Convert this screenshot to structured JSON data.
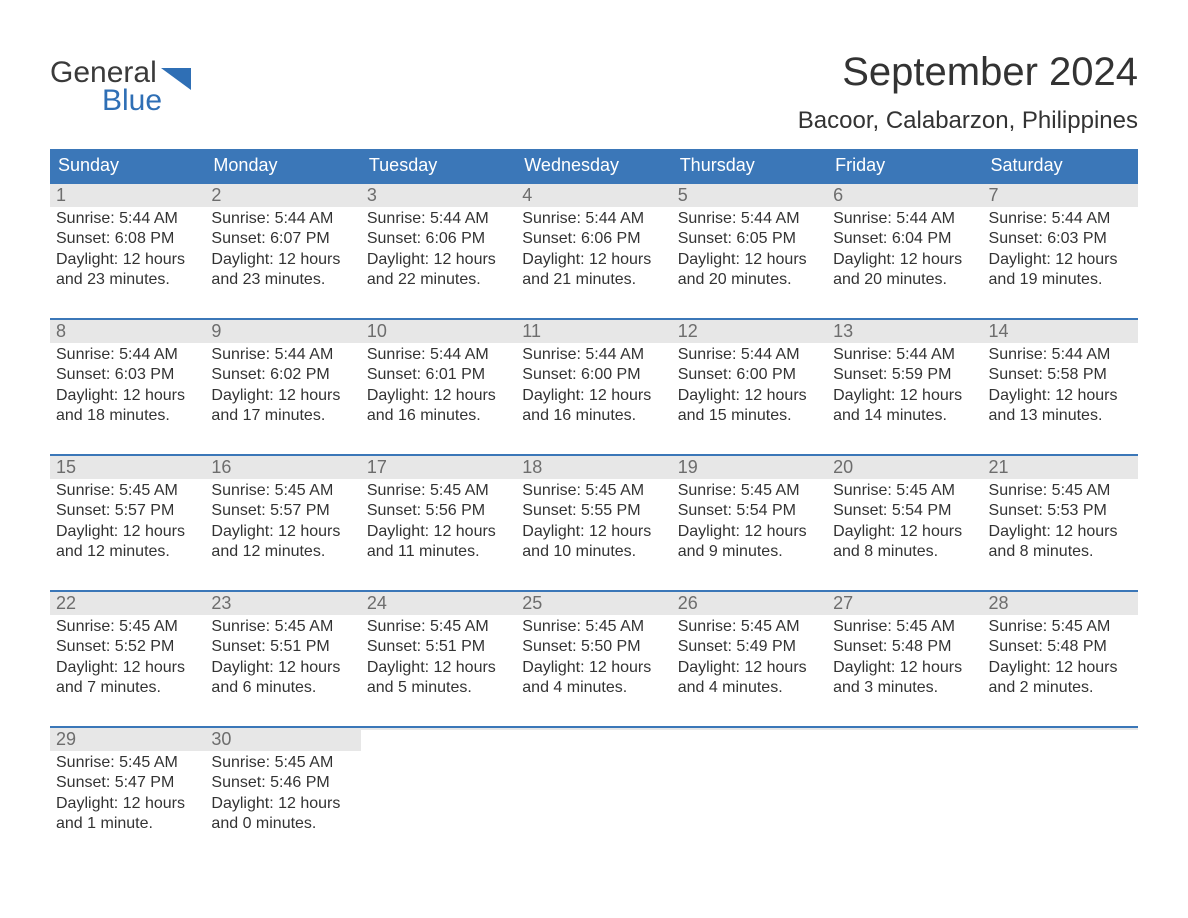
{
  "logo": {
    "text_general": "General",
    "text_blue": "Blue"
  },
  "header": {
    "month_title": "September 2024",
    "location": "Bacoor, Calabarzon, Philippines"
  },
  "colors": {
    "header_bg": "#3b77b8",
    "header_text": "#ffffff",
    "daynum_bg": "#e7e7e7",
    "daynum_text": "#6d6d6d",
    "body_text": "#333333",
    "logo_blue": "#2f6fb5",
    "week_border": "#3b77b8"
  },
  "day_names": [
    "Sunday",
    "Monday",
    "Tuesday",
    "Wednesday",
    "Thursday",
    "Friday",
    "Saturday"
  ],
  "weeks": [
    [
      {
        "num": "1",
        "sunrise": "Sunrise: 5:44 AM",
        "sunset": "Sunset: 6:08 PM",
        "daylight": "Daylight: 12 hours and 23 minutes."
      },
      {
        "num": "2",
        "sunrise": "Sunrise: 5:44 AM",
        "sunset": "Sunset: 6:07 PM",
        "daylight": "Daylight: 12 hours and 23 minutes."
      },
      {
        "num": "3",
        "sunrise": "Sunrise: 5:44 AM",
        "sunset": "Sunset: 6:06 PM",
        "daylight": "Daylight: 12 hours and 22 minutes."
      },
      {
        "num": "4",
        "sunrise": "Sunrise: 5:44 AM",
        "sunset": "Sunset: 6:06 PM",
        "daylight": "Daylight: 12 hours and 21 minutes."
      },
      {
        "num": "5",
        "sunrise": "Sunrise: 5:44 AM",
        "sunset": "Sunset: 6:05 PM",
        "daylight": "Daylight: 12 hours and 20 minutes."
      },
      {
        "num": "6",
        "sunrise": "Sunrise: 5:44 AM",
        "sunset": "Sunset: 6:04 PM",
        "daylight": "Daylight: 12 hours and 20 minutes."
      },
      {
        "num": "7",
        "sunrise": "Sunrise: 5:44 AM",
        "sunset": "Sunset: 6:03 PM",
        "daylight": "Daylight: 12 hours and 19 minutes."
      }
    ],
    [
      {
        "num": "8",
        "sunrise": "Sunrise: 5:44 AM",
        "sunset": "Sunset: 6:03 PM",
        "daylight": "Daylight: 12 hours and 18 minutes."
      },
      {
        "num": "9",
        "sunrise": "Sunrise: 5:44 AM",
        "sunset": "Sunset: 6:02 PM",
        "daylight": "Daylight: 12 hours and 17 minutes."
      },
      {
        "num": "10",
        "sunrise": "Sunrise: 5:44 AM",
        "sunset": "Sunset: 6:01 PM",
        "daylight": "Daylight: 12 hours and 16 minutes."
      },
      {
        "num": "11",
        "sunrise": "Sunrise: 5:44 AM",
        "sunset": "Sunset: 6:00 PM",
        "daylight": "Daylight: 12 hours and 16 minutes."
      },
      {
        "num": "12",
        "sunrise": "Sunrise: 5:44 AM",
        "sunset": "Sunset: 6:00 PM",
        "daylight": "Daylight: 12 hours and 15 minutes."
      },
      {
        "num": "13",
        "sunrise": "Sunrise: 5:44 AM",
        "sunset": "Sunset: 5:59 PM",
        "daylight": "Daylight: 12 hours and 14 minutes."
      },
      {
        "num": "14",
        "sunrise": "Sunrise: 5:44 AM",
        "sunset": "Sunset: 5:58 PM",
        "daylight": "Daylight: 12 hours and 13 minutes."
      }
    ],
    [
      {
        "num": "15",
        "sunrise": "Sunrise: 5:45 AM",
        "sunset": "Sunset: 5:57 PM",
        "daylight": "Daylight: 12 hours and 12 minutes."
      },
      {
        "num": "16",
        "sunrise": "Sunrise: 5:45 AM",
        "sunset": "Sunset: 5:57 PM",
        "daylight": "Daylight: 12 hours and 12 minutes."
      },
      {
        "num": "17",
        "sunrise": "Sunrise: 5:45 AM",
        "sunset": "Sunset: 5:56 PM",
        "daylight": "Daylight: 12 hours and 11 minutes."
      },
      {
        "num": "18",
        "sunrise": "Sunrise: 5:45 AM",
        "sunset": "Sunset: 5:55 PM",
        "daylight": "Daylight: 12 hours and 10 minutes."
      },
      {
        "num": "19",
        "sunrise": "Sunrise: 5:45 AM",
        "sunset": "Sunset: 5:54 PM",
        "daylight": "Daylight: 12 hours and 9 minutes."
      },
      {
        "num": "20",
        "sunrise": "Sunrise: 5:45 AM",
        "sunset": "Sunset: 5:54 PM",
        "daylight": "Daylight: 12 hours and 8 minutes."
      },
      {
        "num": "21",
        "sunrise": "Sunrise: 5:45 AM",
        "sunset": "Sunset: 5:53 PM",
        "daylight": "Daylight: 12 hours and 8 minutes."
      }
    ],
    [
      {
        "num": "22",
        "sunrise": "Sunrise: 5:45 AM",
        "sunset": "Sunset: 5:52 PM",
        "daylight": "Daylight: 12 hours and 7 minutes."
      },
      {
        "num": "23",
        "sunrise": "Sunrise: 5:45 AM",
        "sunset": "Sunset: 5:51 PM",
        "daylight": "Daylight: 12 hours and 6 minutes."
      },
      {
        "num": "24",
        "sunrise": "Sunrise: 5:45 AM",
        "sunset": "Sunset: 5:51 PM",
        "daylight": "Daylight: 12 hours and 5 minutes."
      },
      {
        "num": "25",
        "sunrise": "Sunrise: 5:45 AM",
        "sunset": "Sunset: 5:50 PM",
        "daylight": "Daylight: 12 hours and 4 minutes."
      },
      {
        "num": "26",
        "sunrise": "Sunrise: 5:45 AM",
        "sunset": "Sunset: 5:49 PM",
        "daylight": "Daylight: 12 hours and 4 minutes."
      },
      {
        "num": "27",
        "sunrise": "Sunrise: 5:45 AM",
        "sunset": "Sunset: 5:48 PM",
        "daylight": "Daylight: 12 hours and 3 minutes."
      },
      {
        "num": "28",
        "sunrise": "Sunrise: 5:45 AM",
        "sunset": "Sunset: 5:48 PM",
        "daylight": "Daylight: 12 hours and 2 minutes."
      }
    ],
    [
      {
        "num": "29",
        "sunrise": "Sunrise: 5:45 AM",
        "sunset": "Sunset: 5:47 PM",
        "daylight": "Daylight: 12 hours and 1 minute."
      },
      {
        "num": "30",
        "sunrise": "Sunrise: 5:45 AM",
        "sunset": "Sunset: 5:46 PM",
        "daylight": "Daylight: 12 hours and 0 minutes."
      },
      {
        "num": "",
        "sunrise": "",
        "sunset": "",
        "daylight": ""
      },
      {
        "num": "",
        "sunrise": "",
        "sunset": "",
        "daylight": ""
      },
      {
        "num": "",
        "sunrise": "",
        "sunset": "",
        "daylight": ""
      },
      {
        "num": "",
        "sunrise": "",
        "sunset": "",
        "daylight": ""
      },
      {
        "num": "",
        "sunrise": "",
        "sunset": "",
        "daylight": ""
      }
    ]
  ]
}
